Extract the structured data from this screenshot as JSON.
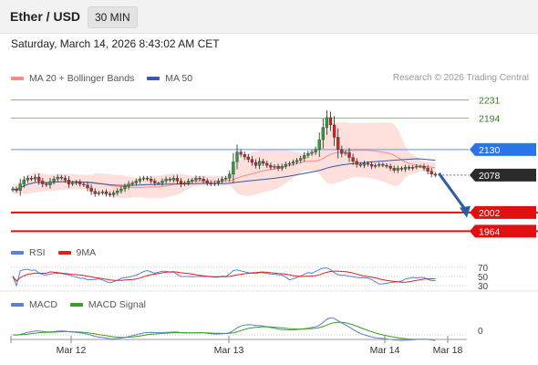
{
  "header": {
    "pair": "Ether / USD",
    "timeframe": "30 MIN"
  },
  "datetime": "Saturday, March 14, 2026 8:43:02 AM CET",
  "legend_main": {
    "ma20": "MA 20 + Bollinger Bands",
    "ma50": "MA 50"
  },
  "credit": "Research © 2026 Trading Central",
  "legend_rsi": {
    "rsi": "RSI",
    "ma9": "9MA"
  },
  "legend_macd": {
    "macd": "MACD",
    "signal": "MACD Signal"
  },
  "colors": {
    "ma20": "#ff8a80",
    "ma50": "#3559a8",
    "rsi": "#5b7fd6",
    "ma9": "#e02020",
    "macd": "#5b7fd6",
    "signal": "#3aa020",
    "resistance": "#86c06a",
    "pivot": "#2a73e8",
    "support": "#e01010",
    "arrow": "#2c5ea8"
  },
  "chart_data": [
    {
      "type": "candlestick",
      "x_ticks": [
        "Mar 12",
        "Mar 13",
        "Mar 14",
        "Mar 18"
      ],
      "ylim": [
        1948,
        2256
      ],
      "levels": [
        {
          "value": 2231,
          "label": "2231",
          "kind": "resistance"
        },
        {
          "value": 2194,
          "label": "2194",
          "kind": "resistance"
        },
        {
          "value": 2130,
          "label": "2130",
          "kind": "pivot"
        },
        {
          "value": 2078,
          "label": "2078",
          "kind": "last"
        },
        {
          "value": 2002,
          "label": "2002",
          "kind": "support"
        },
        {
          "value": 1964,
          "label": "1964",
          "kind": "support"
        }
      ],
      "closes": [
        2050,
        2047,
        2060,
        2068,
        2072,
        2070,
        2074,
        2066,
        2060,
        2058,
        2065,
        2070,
        2074,
        2072,
        2068,
        2060,
        2062,
        2064,
        2060,
        2058,
        2052,
        2045,
        2040,
        2042,
        2044,
        2040,
        2038,
        2042,
        2046,
        2050,
        2055,
        2060,
        2062,
        2066,
        2070,
        2072,
        2070,
        2066,
        2062,
        2062,
        2066,
        2070,
        2068,
        2072,
        2066,
        2060,
        2062,
        2066,
        2068,
        2072,
        2070,
        2066,
        2062,
        2060,
        2062,
        2066,
        2070,
        2072,
        2080,
        2105,
        2125,
        2120,
        2115,
        2110,
        2104,
        2098,
        2106,
        2102,
        2098,
        2094,
        2096,
        2092,
        2096,
        2100,
        2102,
        2105,
        2108,
        2112,
        2118,
        2122,
        2125,
        2130,
        2150,
        2175,
        2195,
        2180,
        2155,
        2130,
        2122,
        2124,
        2114,
        2106,
        2100,
        2098,
        2102,
        2100,
        2096,
        2098,
        2100,
        2098,
        2096,
        2092,
        2088,
        2092,
        2090,
        2094,
        2092,
        2094,
        2096,
        2096,
        2092,
        2086,
        2080,
        2078
      ],
      "rsi": {
        "levels": [
          70,
          50,
          30
        ]
      },
      "macd": {
        "zero_label": "0"
      }
    }
  ]
}
